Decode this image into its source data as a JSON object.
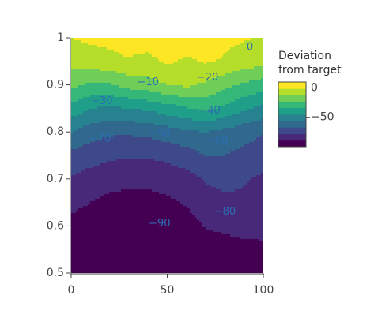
{
  "chart_data": {
    "type": "contour",
    "colorbar_title": [
      "Deviation",
      "from target"
    ],
    "colorbar_ticks": [
      "0",
      "−50"
    ],
    "colorbar_tick_values": [
      0,
      -50
    ],
    "zrange": [
      -100,
      10
    ],
    "colorscale": [
      "#440154",
      "#482878",
      "#3e4989",
      "#31688e",
      "#26828e",
      "#1f9e89",
      "#35b779",
      "#6ece58",
      "#b5de2b",
      "#fde725"
    ],
    "xlim": [
      0,
      100
    ],
    "ylim": [
      0.5,
      1.0
    ],
    "x_ticks": [
      "0",
      "50",
      "100"
    ],
    "x_tick_values": [
      0,
      50,
      100
    ],
    "y_ticks": [
      "0.5",
      "0.6",
      "0.7",
      "0.8",
      "0.9",
      "1"
    ],
    "y_tick_values": [
      0.5,
      0.6,
      0.7,
      0.8,
      0.9,
      1.0
    ],
    "contour_levels": [
      -90,
      -80,
      -70,
      -60,
      -50,
      -40,
      -30,
      -20,
      -10,
      0
    ],
    "contour_labels": [
      {
        "text": "0",
        "x": 93,
        "y": 0.98
      },
      {
        "text": "−10",
        "x": 40,
        "y": 0.905
      },
      {
        "text": "−20",
        "x": 71,
        "y": 0.915
      },
      {
        "text": "−30",
        "x": 16,
        "y": 0.865
      },
      {
        "text": "−40",
        "x": 72,
        "y": 0.845
      },
      {
        "text": "−50",
        "x": 46,
        "y": 0.795
      },
      {
        "text": "−60",
        "x": 76,
        "y": 0.78
      },
      {
        "text": "−70",
        "x": 15,
        "y": 0.785
      },
      {
        "text": "−80",
        "x": 80,
        "y": 0.63
      },
      {
        "text": "−90",
        "x": 46,
        "y": 0.605
      }
    ],
    "x": [
      0,
      10,
      20,
      30,
      40,
      50,
      60,
      70,
      80,
      90,
      100
    ],
    "y": [
      0.5,
      0.55,
      0.6,
      0.65,
      0.7,
      0.75,
      0.8,
      0.85,
      0.9,
      0.95,
      1.0
    ],
    "z": [
      [
        -100,
        -100,
        -100,
        -100,
        -100,
        -100,
        -100,
        -100,
        -100,
        -100,
        -100
      ],
      [
        -98,
        -98,
        -99,
        -99,
        -99,
        -100,
        -99,
        -98,
        -96,
        -93,
        -92
      ],
      [
        -92,
        -95,
        -97,
        -98,
        -97,
        -96,
        -94,
        -88,
        -85,
        -84,
        -84
      ],
      [
        -86,
        -89,
        -92,
        -93,
        -93,
        -91,
        -88,
        -82,
        -80,
        -80,
        -82
      ],
      [
        -79,
        -83,
        -85,
        -86,
        -86,
        -84,
        -82,
        -77,
        -75,
        -77,
        -80
      ],
      [
        -70,
        -73,
        -76,
        -77,
        -77,
        -75,
        -72,
        -67,
        -67,
        -70,
        -73
      ],
      [
        -56,
        -62,
        -65,
        -65,
        -64,
        -61,
        -58,
        -56,
        -59,
        -63,
        -66
      ],
      [
        -38,
        -45,
        -47,
        -45,
        -43,
        -39,
        -35,
        -31,
        -36,
        -43,
        -48
      ],
      [
        -20,
        -25,
        -24,
        -19,
        -16,
        -12,
        -10,
        -14,
        -20,
        -25,
        -28
      ],
      [
        -8,
        -6,
        -4,
        -2,
        -5,
        1,
        -3,
        0,
        -2,
        -6,
        -8
      ],
      [
        -1,
        1,
        2,
        4,
        6,
        9,
        6,
        3,
        1,
        0,
        -2
      ]
    ]
  }
}
